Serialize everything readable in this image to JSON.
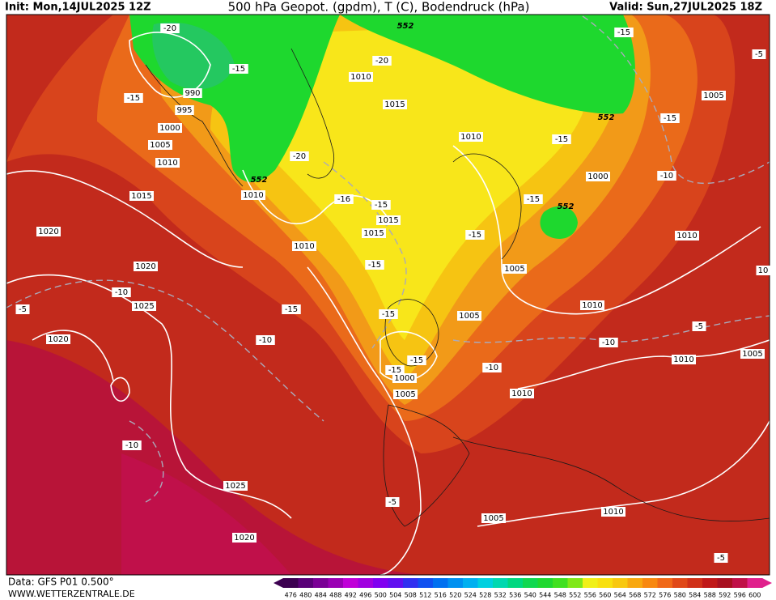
{
  "header": {
    "init": "Init: Mon,14JUL2025 12Z",
    "title": "500 hPa Geopot. (gpdm), T (C), Bodendruck (hPa)",
    "valid": "Valid: Sun,27JUL2025 18Z"
  },
  "contour_labels": [
    "-20",
    "-15",
    "-15",
    "990",
    "995",
    "1000",
    "1005",
    "1010",
    "1015",
    "1020",
    "1020",
    "-10",
    "1025",
    "-5",
    "1020",
    "-10",
    "1025",
    "1020",
    "552",
    "1010",
    "-20",
    "1010",
    "-20",
    "552",
    "1015",
    "-16",
    "-15",
    "1015",
    "1015",
    "1010",
    "-15",
    "-15",
    "-10",
    "-15",
    "-15",
    "-15",
    "1000",
    "1005",
    "-5",
    "1005",
    "1010",
    "-15",
    "1000",
    "-15",
    "552",
    "-15",
    "1005",
    "1005",
    "1010",
    "-10",
    "-10",
    "1010",
    "-15",
    "552",
    "1005",
    "-15",
    "-10",
    "-5",
    "1010",
    "10",
    "-5",
    "1010",
    "1005",
    "1010",
    "-5"
  ],
  "colorbar": {
    "labels": [
      "476",
      "480",
      "484",
      "488",
      "492",
      "496",
      "500",
      "504",
      "508",
      "512",
      "516",
      "520",
      "524",
      "528",
      "532",
      "536",
      "540",
      "544",
      "548",
      "552",
      "556",
      "560",
      "564",
      "568",
      "572",
      "576",
      "580",
      "584",
      "588",
      "592",
      "596",
      "600"
    ]
  },
  "footer": {
    "data": "Data: GFS P01 0.500°",
    "site": "WWW.WETTERZENTRALE.DE"
  }
}
